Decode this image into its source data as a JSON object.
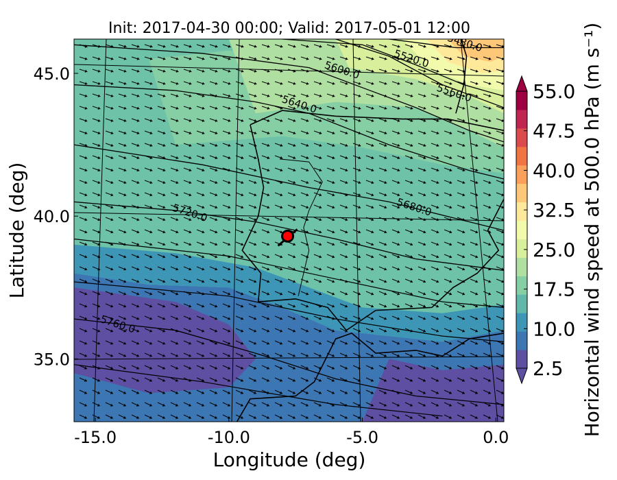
{
  "chart_data": {
    "type": "heatmap",
    "title": "Init: 2017-04-30 00:00; Valid: 2017-05-01 12:00",
    "xlabel": "Longitude (deg)",
    "ylabel": "Latitude (deg)",
    "xlim": [
      -15.8,
      0.3
    ],
    "ylim": [
      32.8,
      46.2
    ],
    "x_ticks": [
      {
        "value": -15,
        "label": "-15.0"
      },
      {
        "value": -10,
        "label": "-10.0"
      },
      {
        "value": -5,
        "label": "-5.0"
      },
      {
        "value": 0,
        "label": "0.0"
      }
    ],
    "y_ticks": [
      {
        "value": 45,
        "label": "45.0"
      },
      {
        "value": 40,
        "label": "40.0"
      },
      {
        "value": 35,
        "label": "35.0"
      }
    ],
    "colorbar": {
      "label": "Horizontal wind speed at 500.0 hPa (m s⁻¹)",
      "min": 2.5,
      "max": 55.0,
      "tick_labels": [
        "55.0",
        "47.5",
        "40.0",
        "32.5",
        "25.0",
        "17.5",
        "10.0",
        "2.5"
      ],
      "tick_values": [
        55.0,
        47.5,
        40.0,
        32.5,
        25.0,
        17.5,
        10.0,
        2.5
      ],
      "colors": [
        "#5e4fa2",
        "#3c76b3",
        "#3e96b7",
        "#5fb8a9",
        "#86cfa5",
        "#b0dfa2",
        "#d8ef9b",
        "#f2faac",
        "#fee99a",
        "#fdc877",
        "#fba05b",
        "#f17443",
        "#dc4b4c",
        "#bf2751",
        "#9e0142"
      ]
    },
    "height_contours": [
      {
        "value": 5480,
        "label": "5480.0"
      },
      {
        "value": 5520,
        "label": "5520.0"
      },
      {
        "value": 5560,
        "label": "5560.0"
      },
      {
        "value": 5600,
        "label": "5600.0"
      },
      {
        "value": 5640,
        "label": "5640.0"
      },
      {
        "value": 5680,
        "label": "5680.0"
      },
      {
        "value": 5720,
        "label": "5720.0"
      },
      {
        "value": 5760,
        "label": "5760.0"
      }
    ],
    "marker": {
      "lon": -7.8,
      "lat": 39.3,
      "color": "#ff0000"
    },
    "grid": true
  }
}
